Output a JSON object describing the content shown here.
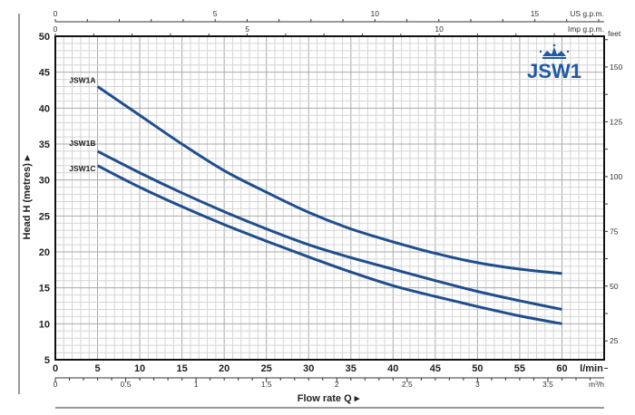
{
  "chart_data": {
    "type": "line",
    "brand": "JSW1",
    "xlabel": "Flow rate Q",
    "ylabel": "Head H (metres)",
    "x_unit": "l/min",
    "xlim": [
      0,
      65
    ],
    "ylim": [
      5,
      50
    ],
    "grid": true,
    "x_ticks": [
      0,
      5,
      10,
      15,
      20,
      25,
      30,
      35,
      40,
      45,
      50,
      55,
      60
    ],
    "y_ticks": [
      5,
      10,
      15,
      20,
      25,
      30,
      35,
      40,
      45,
      50
    ],
    "secondary_axes": {
      "us_gpm": {
        "unit": "US g.p.m.",
        "ticks": [
          0,
          5,
          10,
          15
        ]
      },
      "imp_gpm": {
        "unit": "Imp g.p.m.",
        "ticks": [
          0,
          5,
          10
        ]
      },
      "m3h": {
        "unit": "m³/h",
        "ticks": [
          "0",
          "0.5",
          "1",
          "1.5",
          "2",
          "2.5",
          "3",
          "3.5"
        ]
      },
      "feet": {
        "unit": "feet",
        "ticks": [
          25,
          50,
          75,
          100,
          125,
          150
        ]
      }
    },
    "x": [
      5,
      10,
      15,
      20,
      25,
      30,
      35,
      40,
      45,
      50,
      55,
      60
    ],
    "series": [
      {
        "name": "JSW1A",
        "values": [
          43,
          39,
          35,
          31.3,
          28.3,
          25.5,
          23.2,
          21.4,
          19.8,
          18.5,
          17.6,
          17
        ]
      },
      {
        "name": "JSW1B",
        "values": [
          34,
          31,
          28.2,
          25.6,
          23.2,
          21,
          19.2,
          17.6,
          16,
          14.5,
          13.2,
          12
        ]
      },
      {
        "name": "JSW1C",
        "values": [
          32,
          29,
          26.3,
          23.8,
          21.5,
          19.3,
          17.2,
          15.3,
          13.8,
          12.4,
          11.1,
          10
        ]
      }
    ],
    "colors": {
      "curve": "#1f4e8c",
      "brand": "#1f5aa6",
      "grid": "#c8c8c8"
    }
  }
}
